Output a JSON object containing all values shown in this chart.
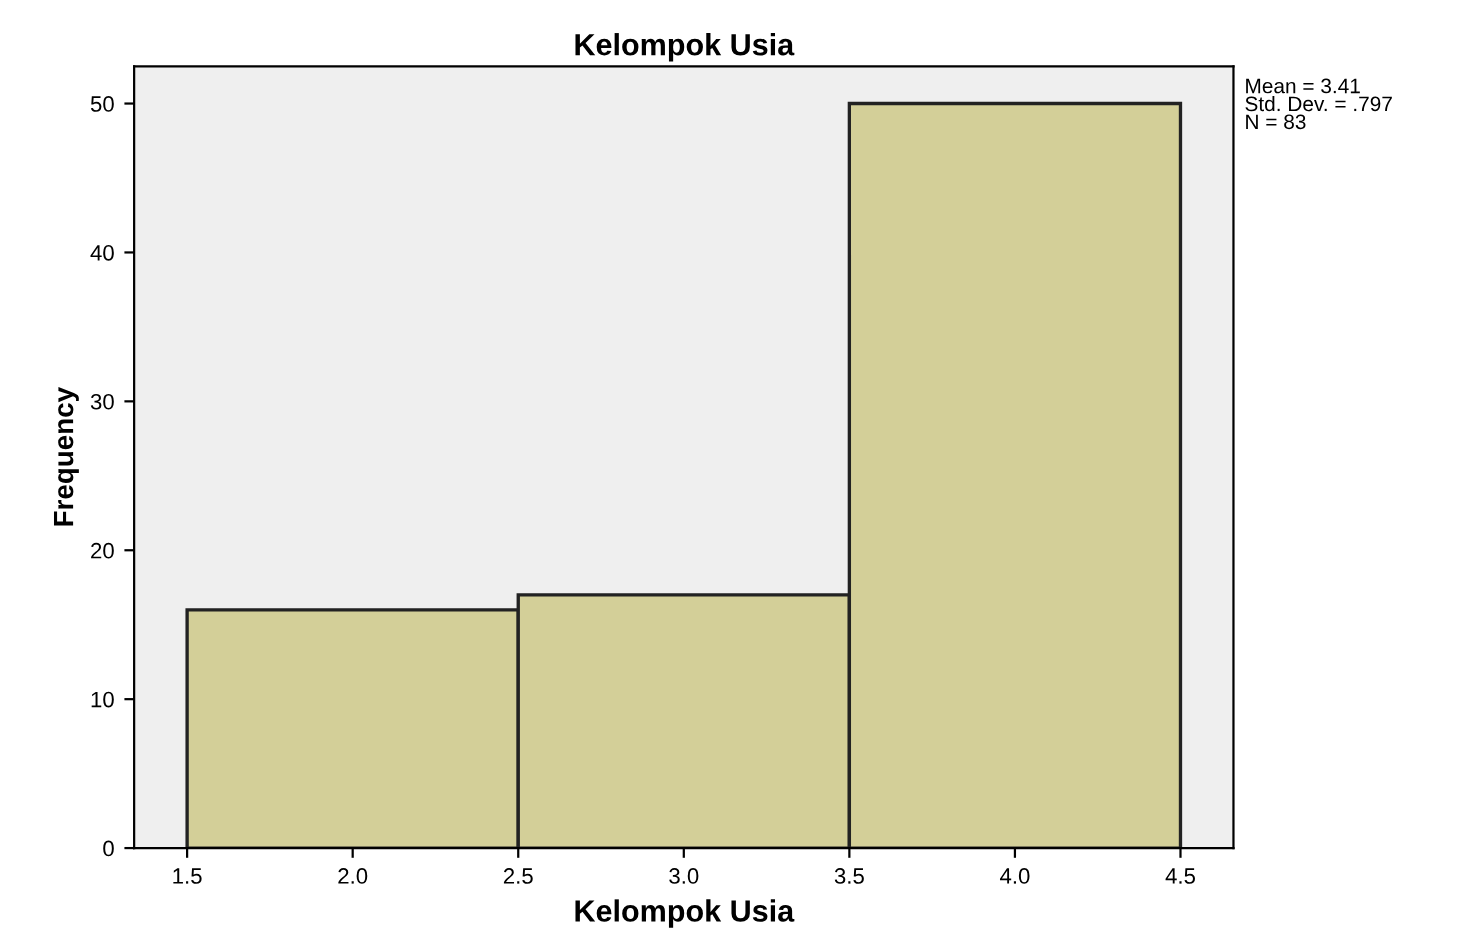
{
  "chart_data": {
    "type": "histogram",
    "title": "Kelompok Usia",
    "xlabel": "Kelompok Usia",
    "ylabel": "Frequency",
    "bins": [
      1.5,
      2.5,
      3.5,
      4.5
    ],
    "values": [
      16,
      17,
      50
    ],
    "color": "#d3cf98",
    "xlim": [
      1.34,
      4.66
    ],
    "ylim": [
      0,
      52.5
    ],
    "xticks": [
      {
        "value": 1.5,
        "label": "1.5"
      },
      {
        "value": 2,
        "label": "2.0"
      },
      {
        "value": 2.5,
        "label": "2.5"
      },
      {
        "value": 3,
        "label": "3.0"
      },
      {
        "value": 3.5,
        "label": "3.5"
      },
      {
        "value": 4,
        "label": "4.0"
      },
      {
        "value": 4.5,
        "label": "4.5"
      }
    ],
    "yticks": [
      0,
      10,
      20,
      30,
      40,
      50
    ],
    "annotations": [
      "Mean = 3.41\nStd. Dev. = .797\nN = 83"
    ],
    "grid": false
  }
}
